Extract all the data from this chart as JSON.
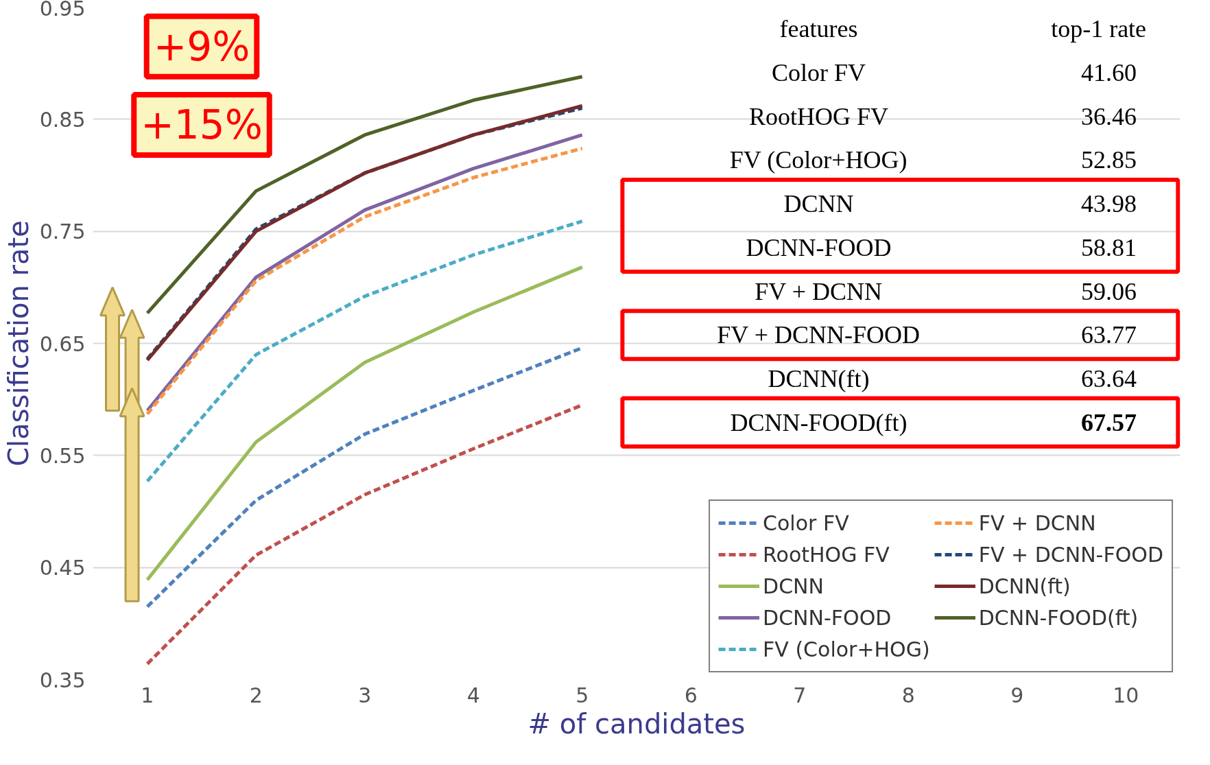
{
  "chart_data": {
    "type": "line",
    "xlabel": "# of candidates",
    "ylabel": "Classification rate",
    "x": [
      1,
      2,
      3,
      4,
      5
    ],
    "xlim": [
      0.5,
      10.5
    ],
    "xticks": [
      1,
      2,
      3,
      4,
      5,
      6,
      7,
      8,
      9,
      10
    ],
    "ylim": [
      0.35,
      0.95
    ],
    "yticks": [
      0.35,
      0.45,
      0.55,
      0.65,
      0.75,
      0.85,
      0.95
    ],
    "grid": "y",
    "legend": "bottom right",
    "marker": "none",
    "series": [
      {
        "name": "Color FV",
        "color": "#4f81bd",
        "line_style": "dashed",
        "values": [
          0.415,
          0.51,
          0.569,
          0.608,
          0.646
        ]
      },
      {
        "name": "RootHOG FV",
        "color": "#c0504d",
        "line_style": "dashed",
        "values": [
          0.364,
          0.461,
          0.515,
          0.556,
          0.595
        ]
      },
      {
        "name": "DCNN",
        "color": "#9bbb59",
        "line_style": "solid",
        "values": [
          0.439,
          0.562,
          0.633,
          0.678,
          0.718
        ]
      },
      {
        "name": "DCNN-FOOD",
        "color": "#8064a2",
        "line_style": "solid",
        "values": [
          0.59,
          0.709,
          0.769,
          0.806,
          0.836
        ]
      },
      {
        "name": "FV (Color+HOG)",
        "color": "#4bacc6",
        "line_style": "dashed",
        "values": [
          0.527,
          0.64,
          0.692,
          0.729,
          0.759
        ]
      },
      {
        "name": "FV + DCNN",
        "color": "#f79646",
        "line_style": "dashed",
        "values": [
          0.587,
          0.706,
          0.763,
          0.798,
          0.824
        ]
      },
      {
        "name": "FV + DCNN-FOOD",
        "color": "#1f497d",
        "line_style": "dashed",
        "values": [
          0.636,
          0.752,
          0.802,
          0.836,
          0.86
        ]
      },
      {
        "name": "DCNN(ft)",
        "color": "#772c2a",
        "line_style": "solid",
        "values": [
          0.635,
          0.75,
          0.802,
          0.836,
          0.862
        ]
      },
      {
        "name": "DCNN-FOOD(ft)",
        "color": "#4f6228",
        "line_style": "solid",
        "values": [
          0.677,
          0.786,
          0.836,
          0.867,
          0.888
        ]
      }
    ],
    "annotations": [
      "+9%",
      "+15%",
      "features",
      "top-1 rate",
      "Color FV",
      "41.60",
      "RootHOG FV",
      "36.46",
      "FV (Color+HOG)",
      "52.85",
      "DCNN",
      "43.98",
      "DCNN-FOOD",
      "58.81",
      "FV + DCNN",
      "59.06",
      "FV + DCNN-FOOD",
      "63.77",
      "DCNN(ft)",
      "63.64",
      "DCNN-FOOD(ft)",
      "67.57"
    ]
  }
}
